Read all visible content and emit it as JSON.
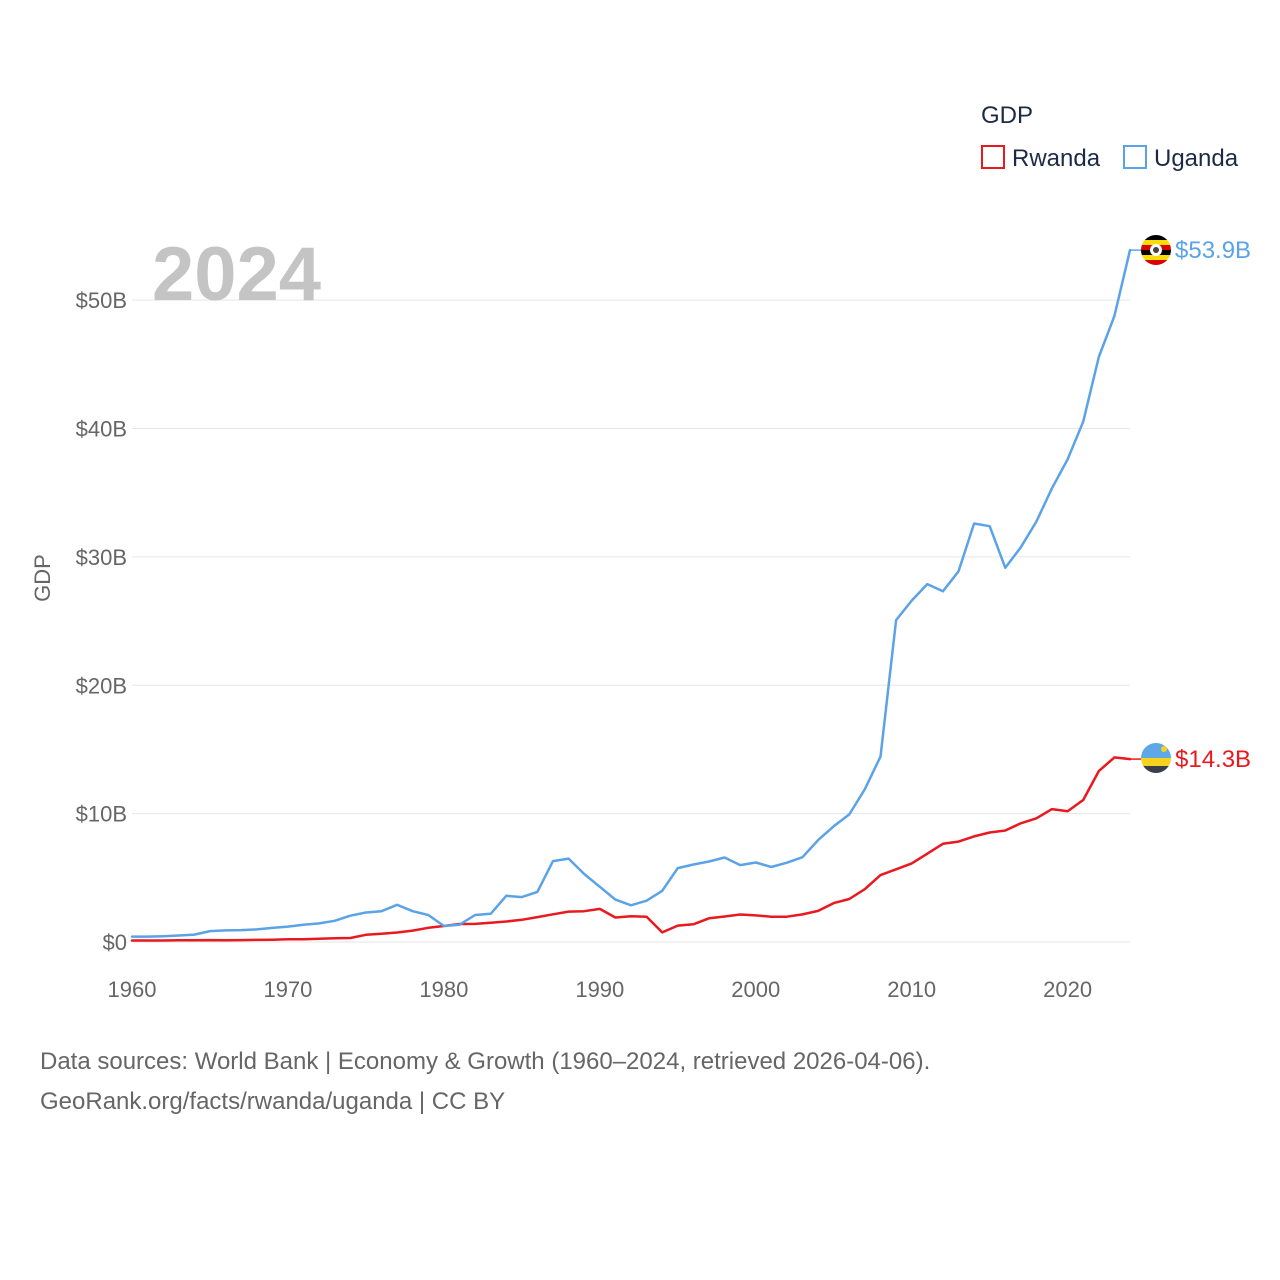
{
  "chart_data": {
    "type": "line",
    "title": "GDP",
    "ylabel": "GDP",
    "xlabel": "",
    "year_label": "2024",
    "xlim": [
      1960,
      2024
    ],
    "ylim": [
      0,
      55
    ],
    "x_ticks": [
      1960,
      1970,
      1980,
      1990,
      2000,
      2010,
      2020
    ],
    "x_tick_labels": [
      "1960",
      "1970",
      "1980",
      "1990",
      "2000",
      "2010",
      "2020"
    ],
    "y_ticks": [
      0,
      10,
      20,
      30,
      40,
      50
    ],
    "y_tick_labels": [
      "$0",
      "$10B",
      "$20B",
      "$30B",
      "$40B",
      "$50B"
    ],
    "grid": true,
    "legend_position": "top-right",
    "x": [
      1960,
      1961,
      1962,
      1963,
      1964,
      1965,
      1966,
      1967,
      1968,
      1969,
      1970,
      1971,
      1972,
      1973,
      1974,
      1975,
      1976,
      1977,
      1978,
      1979,
      1980,
      1981,
      1982,
      1983,
      1984,
      1985,
      1986,
      1987,
      1988,
      1989,
      1990,
      1991,
      1992,
      1993,
      1994,
      1995,
      1996,
      1997,
      1998,
      1999,
      2000,
      2001,
      2002,
      2003,
      2004,
      2005,
      2006,
      2007,
      2008,
      2009,
      2010,
      2011,
      2012,
      2013,
      2014,
      2015,
      2016,
      2017,
      2018,
      2019,
      2020,
      2021,
      2022,
      2023,
      2024
    ],
    "series": [
      {
        "name": "Rwanda",
        "color": "#e8191f",
        "end_label": "$14.3B",
        "values": [
          0.12,
          0.12,
          0.12,
          0.13,
          0.13,
          0.15,
          0.13,
          0.15,
          0.16,
          0.18,
          0.22,
          0.22,
          0.25,
          0.29,
          0.31,
          0.56,
          0.64,
          0.74,
          0.89,
          1.11,
          1.25,
          1.4,
          1.41,
          1.5,
          1.6,
          1.73,
          1.94,
          2.16,
          2.37,
          2.4,
          2.58,
          1.91,
          2.01,
          1.97,
          0.75,
          1.28,
          1.38,
          1.85,
          1.99,
          2.14,
          2.07,
          1.97,
          1.97,
          2.15,
          2.42,
          3.03,
          3.35,
          4.12,
          5.21,
          5.66,
          6.12,
          6.88,
          7.65,
          7.82,
          8.23,
          8.53,
          8.69,
          9.25,
          9.64,
          10.35,
          10.18,
          11.06,
          13.31,
          14.38,
          14.25
        ]
      },
      {
        "name": "Uganda",
        "color": "#5ba3e6",
        "end_label": "$53.9B",
        "values": [
          0.42,
          0.42,
          0.45,
          0.51,
          0.58,
          0.85,
          0.9,
          0.93,
          0.98,
          1.1,
          1.2,
          1.35,
          1.45,
          1.65,
          2.05,
          2.3,
          2.4,
          2.9,
          2.4,
          2.1,
          1.25,
          1.35,
          2.1,
          2.2,
          3.6,
          3.5,
          3.9,
          6.3,
          6.5,
          5.3,
          4.3,
          3.3,
          2.86,
          3.22,
          3.99,
          5.76,
          6.04,
          6.27,
          6.58,
          5.99,
          6.19,
          5.84,
          6.18,
          6.61,
          7.94,
          9.01,
          9.94,
          11.91,
          14.44,
          25.08,
          26.6,
          27.88,
          27.32,
          28.87,
          32.6,
          32.39,
          29.15,
          30.75,
          32.76,
          35.35,
          37.6,
          40.53,
          45.57,
          48.77,
          53.9
        ]
      }
    ]
  },
  "footer": {
    "line1": "Data sources: World Bank | Economy & Growth (1960–2024, retrieved 2026-04-06).",
    "line2": "GeoRank.org/facts/rwanda/uganda | CC BY"
  }
}
